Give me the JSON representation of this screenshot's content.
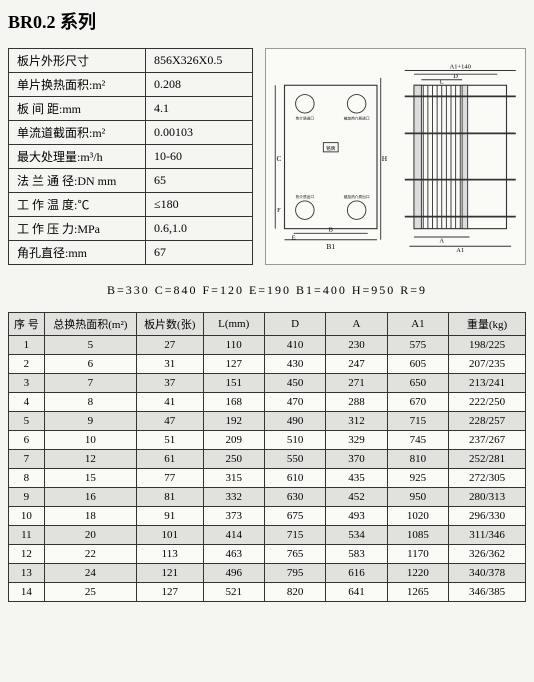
{
  "title": "BR0.2 系列",
  "specs": [
    {
      "label": "板片外形尺寸",
      "value": "856X326X0.5"
    },
    {
      "label": "单片换热面积:m²",
      "value": "0.208"
    },
    {
      "label": "板 间 距:mm",
      "value": "4.1"
    },
    {
      "label": "单流道截面积:m²",
      "value": "0.00103"
    },
    {
      "label": "最大处理量:m³/h",
      "value": "10-60"
    },
    {
      "label": "法 兰 通 径:DN mm",
      "value": "65"
    },
    {
      "label": "工 作 温 度:℃",
      "value": "≤180"
    },
    {
      "label": "工 作 压 力:MPa",
      "value": "0.6,1.0"
    },
    {
      "label": "角孔直径:mm",
      "value": "67"
    }
  ],
  "dims_line": "B=330   C=840   F=120   E=190   B1=400   H=950   R=9",
  "diagram_labels": {
    "a1_140": "A1+140",
    "d": "D",
    "l": "L",
    "h": "H",
    "c": "C",
    "b": "B",
    "e": "E",
    "f": "F",
    "b1": "B1",
    "a": "A",
    "a1": "A1",
    "hot_in": "热介质进口",
    "cold_in": "被加热介质进口",
    "hot_out": "热介质出口",
    "cold_out": "被加热介质出口",
    "nameplate": "铭牌"
  },
  "columns": [
    "序 号",
    "总换热面积(m²)",
    "板片数(张)",
    "L(mm)",
    "D",
    "A",
    "A1",
    "重量(kg)"
  ],
  "rows": [
    [
      "1",
      "5",
      "27",
      "110",
      "410",
      "230",
      "575",
      "198/225"
    ],
    [
      "2",
      "6",
      "31",
      "127",
      "430",
      "247",
      "605",
      "207/235"
    ],
    [
      "3",
      "7",
      "37",
      "151",
      "450",
      "271",
      "650",
      "213/241"
    ],
    [
      "4",
      "8",
      "41",
      "168",
      "470",
      "288",
      "670",
      "222/250"
    ],
    [
      "5",
      "9",
      "47",
      "192",
      "490",
      "312",
      "715",
      "228/257"
    ],
    [
      "6",
      "10",
      "51",
      "209",
      "510",
      "329",
      "745",
      "237/267"
    ],
    [
      "7",
      "12",
      "61",
      "250",
      "550",
      "370",
      "810",
      "252/281"
    ],
    [
      "8",
      "15",
      "77",
      "315",
      "610",
      "435",
      "925",
      "272/305"
    ],
    [
      "9",
      "16",
      "81",
      "332",
      "630",
      "452",
      "950",
      "280/313"
    ],
    [
      "10",
      "18",
      "91",
      "373",
      "675",
      "493",
      "1020",
      "296/330"
    ],
    [
      "11",
      "20",
      "101",
      "414",
      "715",
      "534",
      "1085",
      "311/346"
    ],
    [
      "12",
      "22",
      "113",
      "463",
      "765",
      "583",
      "1170",
      "326/362"
    ],
    [
      "13",
      "24",
      "121",
      "496",
      "795",
      "616",
      "1220",
      "340/378"
    ],
    [
      "14",
      "25",
      "127",
      "521",
      "820",
      "641",
      "1265",
      "346/385"
    ]
  ]
}
